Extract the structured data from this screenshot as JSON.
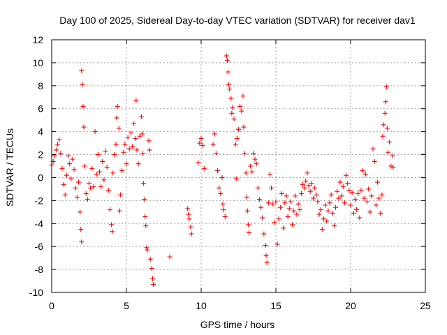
{
  "chart_data": {
    "type": "scatter",
    "title": "Day 100 of 2025, Sidereal Day-to-day VTEC variation (SDTVAR) for receiver dav1",
    "xlabel": "GPS time / hours",
    "ylabel": "SDTVAR / TECUs",
    "xlim": [
      0,
      25
    ],
    "ylim": [
      -10,
      12
    ],
    "xticks": [
      "0",
      "5",
      "10",
      "15",
      "20",
      "25"
    ],
    "yticks": [
      "-10",
      "-8",
      "-6",
      "-4",
      "-2",
      "0",
      "2",
      "4",
      "6",
      "8",
      "10",
      "12"
    ],
    "grid": true,
    "marker": "plus",
    "color": "#ff0000",
    "series": [
      {
        "name": "SDTVAR",
        "points": [
          [
            0.0,
            1.1
          ],
          [
            0.1,
            1.4
          ],
          [
            0.2,
            1.9
          ],
          [
            0.3,
            2.4
          ],
          [
            0.4,
            2.9
          ],
          [
            0.5,
            3.3
          ],
          [
            0.6,
            2.1
          ],
          [
            0.7,
            0.8
          ],
          [
            0.8,
            -0.6
          ],
          [
            0.9,
            -1.5
          ],
          [
            1.0,
            0.2
          ],
          [
            1.1,
            1.9
          ],
          [
            1.2,
            1.2
          ],
          [
            1.3,
            -0.1
          ],
          [
            1.4,
            1.6
          ],
          [
            1.5,
            0.7
          ],
          [
            1.6,
            -0.9
          ],
          [
            1.7,
            -1.7
          ],
          [
            1.8,
            -0.4
          ],
          [
            1.9,
            -3.0
          ],
          [
            1.95,
            -4.5
          ],
          [
            2.0,
            -5.6
          ],
          [
            2.0,
            9.3
          ],
          [
            2.05,
            8.1
          ],
          [
            2.1,
            6.2
          ],
          [
            2.15,
            4.4
          ],
          [
            2.2,
            1.0
          ],
          [
            2.3,
            -1.4
          ],
          [
            2.4,
            -1.9
          ],
          [
            2.5,
            -0.5
          ],
          [
            2.6,
            -0.9
          ],
          [
            2.7,
            0.8
          ],
          [
            2.8,
            -0.8
          ],
          [
            2.9,
            4.0
          ],
          [
            3.0,
            0.3
          ],
          [
            3.1,
            2.0
          ],
          [
            3.2,
            0.5
          ],
          [
            3.3,
            -0.8
          ],
          [
            3.4,
            1.4
          ],
          [
            3.5,
            -0.2
          ],
          [
            3.6,
            2.3
          ],
          [
            3.7,
            0.9
          ],
          [
            3.8,
            -1.1
          ],
          [
            3.9,
            -2.8
          ],
          [
            4.0,
            -4.1
          ],
          [
            4.05,
            -4.7
          ],
          [
            4.1,
            0.4
          ],
          [
            4.2,
            2.0
          ],
          [
            4.3,
            2.9
          ],
          [
            4.35,
            5.2
          ],
          [
            4.4,
            6.2
          ],
          [
            4.5,
            4.3
          ],
          [
            4.55,
            -2.9
          ],
          [
            4.6,
            -1.5
          ],
          [
            4.7,
            0.6
          ],
          [
            4.8,
            2.2
          ],
          [
            4.9,
            2.9
          ],
          [
            5.0,
            1.2
          ],
          [
            5.1,
            3.5
          ],
          [
            5.2,
            2.5
          ],
          [
            5.3,
            3.9
          ],
          [
            5.4,
            2.7
          ],
          [
            5.5,
            4.7
          ],
          [
            5.6,
            3.4
          ],
          [
            5.65,
            6.7
          ],
          [
            5.7,
            2.4
          ],
          [
            5.8,
            1.2
          ],
          [
            5.9,
            3.6
          ],
          [
            6.0,
            5.3
          ],
          [
            6.05,
            3.8
          ],
          [
            6.1,
            2.1
          ],
          [
            6.15,
            -0.5
          ],
          [
            6.2,
            -1.9
          ],
          [
            6.25,
            -3.4
          ],
          [
            6.3,
            -4.2
          ],
          [
            6.35,
            -6.1
          ],
          [
            6.4,
            -6.3
          ],
          [
            6.5,
            3.2
          ],
          [
            6.55,
            2.4
          ],
          [
            6.6,
            -7.1
          ],
          [
            6.7,
            -7.9
          ],
          [
            6.75,
            -8.8
          ],
          [
            6.8,
            -9.3
          ],
          [
            7.9,
            -6.9
          ],
          [
            9.1,
            -2.7
          ],
          [
            9.15,
            -3.2
          ],
          [
            9.2,
            -3.6
          ],
          [
            9.3,
            -4.3
          ],
          [
            9.35,
            -4.9
          ],
          [
            9.8,
            1.3
          ],
          [
            9.9,
            3.0
          ],
          [
            10.0,
            3.4
          ],
          [
            10.1,
            2.8
          ],
          [
            10.2,
            0.8
          ],
          [
            10.8,
            2.9
          ],
          [
            10.9,
            3.8
          ],
          [
            11.0,
            2.1
          ],
          [
            11.1,
            0.6
          ],
          [
            11.2,
            -0.9
          ],
          [
            11.3,
            -1.4
          ],
          [
            11.4,
            0.0
          ],
          [
            11.45,
            -2.3
          ],
          [
            11.5,
            -2.8
          ],
          [
            11.6,
            -3.4
          ],
          [
            11.7,
            10.6
          ],
          [
            11.75,
            10.2
          ],
          [
            11.8,
            9.2
          ],
          [
            11.85,
            8.1
          ],
          [
            11.9,
            7.7
          ],
          [
            12.0,
            6.9
          ],
          [
            12.05,
            5.6
          ],
          [
            12.1,
            6.1
          ],
          [
            12.2,
            5.1
          ],
          [
            12.3,
            2.9
          ],
          [
            12.35,
            -0.1
          ],
          [
            12.4,
            3.4
          ],
          [
            12.5,
            4.2
          ],
          [
            12.6,
            6.2
          ],
          [
            12.7,
            5.8
          ],
          [
            12.8,
            7.1
          ],
          [
            12.85,
            4.4
          ],
          [
            12.9,
            2.1
          ],
          [
            13.0,
            0.4
          ],
          [
            13.05,
            -1.7
          ],
          [
            13.1,
            -2.9
          ],
          [
            13.15,
            -4.1
          ],
          [
            13.2,
            -4.8
          ],
          [
            13.3,
            1.0
          ],
          [
            13.4,
            0.5
          ],
          [
            13.5,
            2.1
          ],
          [
            13.6,
            1.6
          ],
          [
            13.7,
            1.2
          ],
          [
            13.8,
            -0.9
          ],
          [
            13.9,
            -1.9
          ],
          [
            14.0,
            -2.6
          ],
          [
            14.1,
            -3.5
          ],
          [
            14.2,
            -4.9
          ],
          [
            14.3,
            -5.9
          ],
          [
            14.35,
            -6.8
          ],
          [
            14.4,
            -7.4
          ],
          [
            14.5,
            -2.2
          ],
          [
            14.6,
            0.3
          ],
          [
            14.7,
            -0.9
          ],
          [
            14.8,
            -2.3
          ],
          [
            14.9,
            -3.9
          ],
          [
            15.0,
            -2.1
          ],
          [
            15.1,
            -5.8
          ],
          [
            15.2,
            -3.6
          ],
          [
            15.3,
            -2.6
          ],
          [
            15.4,
            -1.4
          ],
          [
            15.5,
            -4.4
          ],
          [
            15.6,
            -2.2
          ],
          [
            15.7,
            -1.6
          ],
          [
            15.8,
            -3.4
          ],
          [
            15.9,
            -2.7
          ],
          [
            16.0,
            -2.1
          ],
          [
            16.1,
            -4.1
          ],
          [
            16.2,
            -2.9
          ],
          [
            16.3,
            -1.6
          ],
          [
            16.4,
            -3.2
          ],
          [
            16.5,
            -2.3
          ],
          [
            16.6,
            -2.8
          ],
          [
            16.7,
            -1.4
          ],
          [
            16.8,
            -0.6
          ],
          [
            16.9,
            -0.9
          ],
          [
            17.0,
            -0.3
          ],
          [
            17.1,
            0.4
          ],
          [
            17.2,
            -0.7
          ],
          [
            17.3,
            -1.2
          ],
          [
            17.4,
            -0.5
          ],
          [
            17.5,
            -1.8
          ],
          [
            17.6,
            -0.9
          ],
          [
            17.7,
            -1.5
          ],
          [
            17.8,
            -2.1
          ],
          [
            17.9,
            -3.2
          ],
          [
            18.0,
            -2.8
          ],
          [
            18.1,
            -4.5
          ],
          [
            18.2,
            -3.6
          ],
          [
            18.3,
            -2.4
          ],
          [
            18.4,
            -3.8
          ],
          [
            18.5,
            -2.9
          ],
          [
            18.6,
            -2.2
          ],
          [
            18.7,
            -1.5
          ],
          [
            18.8,
            -3.1
          ],
          [
            18.9,
            -4.2
          ],
          [
            19.0,
            -2.6
          ],
          [
            19.1,
            -1.2
          ],
          [
            19.2,
            -1.8
          ],
          [
            19.3,
            -0.4
          ],
          [
            19.4,
            -1.6
          ],
          [
            19.5,
            -0.8
          ],
          [
            19.6,
            -2.2
          ],
          [
            19.7,
            0.2
          ],
          [
            19.8,
            -0.5
          ],
          [
            19.9,
            -1.1
          ],
          [
            20.0,
            -2.4
          ],
          [
            20.1,
            -1.3
          ],
          [
            20.2,
            -3.1
          ],
          [
            20.3,
            -1.9
          ],
          [
            20.4,
            -2.8
          ],
          [
            20.5,
            -1.4
          ],
          [
            20.6,
            -3.5
          ],
          [
            20.7,
            -1.1
          ],
          [
            20.8,
            0.6
          ],
          [
            20.9,
            -1.8
          ],
          [
            21.0,
            0.3
          ],
          [
            21.1,
            -2.1
          ],
          [
            21.2,
            -1.0
          ],
          [
            21.3,
            -3.0
          ],
          [
            21.4,
            -1.6
          ],
          [
            21.5,
            2.5
          ],
          [
            21.6,
            1.4
          ],
          [
            21.7,
            -2.4
          ],
          [
            21.8,
            -0.4
          ],
          [
            21.9,
            -1.8
          ],
          [
            22.0,
            -3.1
          ],
          [
            22.1,
            -1.5
          ],
          [
            22.15,
            3.6
          ],
          [
            22.2,
            4.6
          ],
          [
            22.3,
            5.6
          ],
          [
            22.35,
            6.6
          ],
          [
            22.4,
            7.9
          ],
          [
            22.45,
            4.3
          ],
          [
            22.5,
            2.2
          ],
          [
            22.6,
            3.1
          ],
          [
            22.7,
            1.0
          ],
          [
            22.8,
            1.9
          ],
          [
            22.85,
            0.9
          ]
        ]
      }
    ]
  }
}
